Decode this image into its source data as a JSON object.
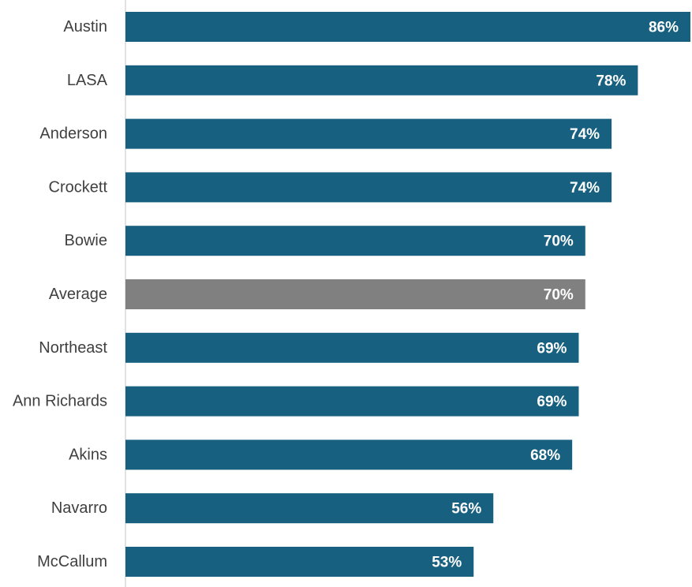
{
  "chart_data": {
    "type": "bar",
    "orientation": "horizontal",
    "categories": [
      "Austin",
      "LASA",
      "Anderson",
      "Crockett",
      "Bowie",
      "Average",
      "Northeast",
      "Ann Richards",
      "Akins",
      "Navarro",
      "McCallum"
    ],
    "values": [
      86,
      78,
      74,
      74,
      70,
      70,
      69,
      69,
      68,
      56,
      53
    ],
    "value_labels": [
      "86%",
      "78%",
      "74%",
      "74%",
      "70%",
      "70%",
      "69%",
      "69%",
      "68%",
      "56%",
      "53%"
    ],
    "title": "",
    "xlabel": "",
    "ylabel": "",
    "xlim": [
      0,
      86
    ],
    "grid": false,
    "legend": "none",
    "colors": {
      "bar": "#17607f",
      "highlight": "#808080",
      "category_text": "#404040",
      "value_text": "#ffffff",
      "axis_line": "#d9d9d9"
    },
    "highlight_category": "Average"
  }
}
